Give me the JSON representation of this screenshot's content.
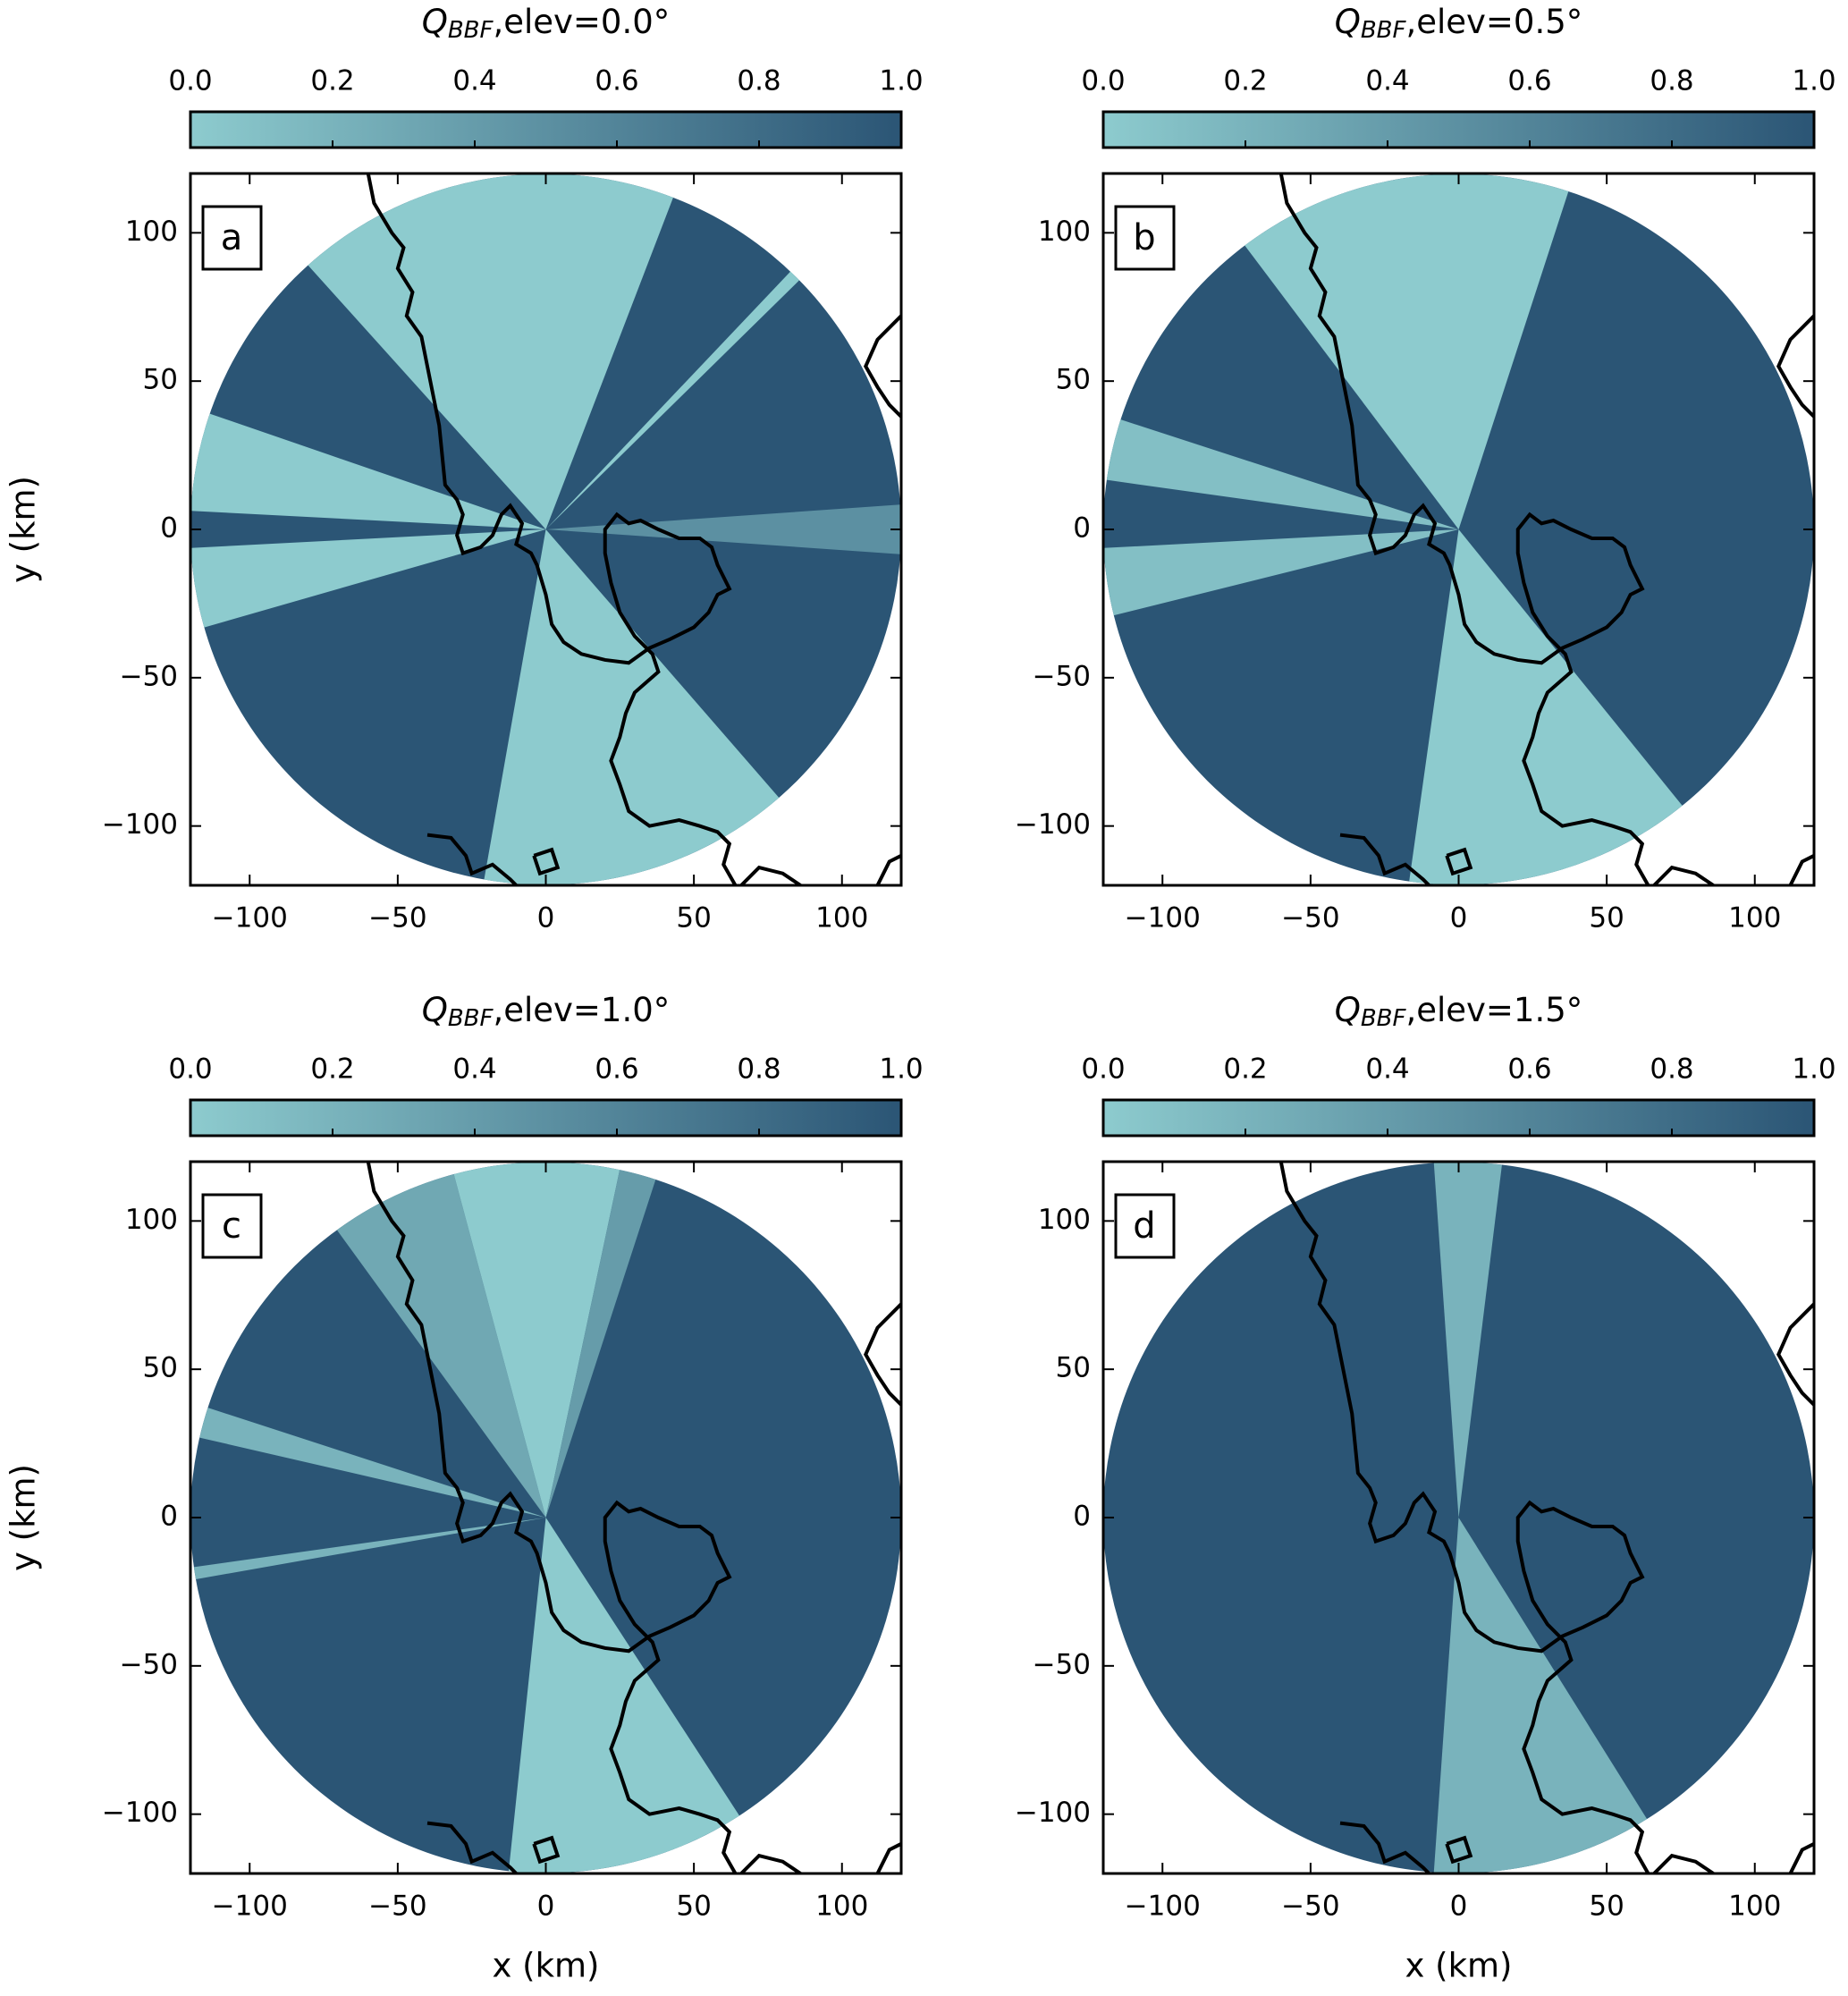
{
  "chart_data": [
    {
      "type": "radar-sector",
      "panel_label": "a",
      "title": "Q",
      "title_subscript": "BBF",
      "title_suffix": ",elev=0.0°",
      "colormap": [
        "#8dcbce",
        "#2b5575"
      ],
      "colorbar": {
        "lim": [
          0,
          1
        ],
        "ticks": [
          {
            "value": 0,
            "label": "0.0"
          },
          0.2,
          0.4,
          0.6,
          0.8,
          {
            "value": 1,
            "label": "1.0"
          }
        ]
      },
      "xlim": [
        -120,
        120
      ],
      "ylim": [
        -120,
        120
      ],
      "xticks": [
        {
          "value": -100,
          "label": "−100"
        },
        {
          "value": -50,
          "label": "−50"
        },
        0,
        50,
        100
      ],
      "yticks": [
        {
          "value": -100,
          "label": "−100"
        },
        {
          "value": -50,
          "label": "−50"
        },
        0,
        50,
        100
      ],
      "ylabel": "y (km)",
      "background_value": 1,
      "sectors": [
        {
          "azimuth": [
            318,
            21
          ],
          "value": 0
        },
        {
          "azimuth": [
            43.5,
            45.5
          ],
          "value": 0
        },
        {
          "azimuth": [
            254,
            267
          ],
          "value": 0
        },
        {
          "azimuth": [
            273,
            289
          ],
          "value": 0
        },
        {
          "azimuth": [
            139,
            190
          ],
          "value": 0
        },
        {
          "azimuth": [
            86,
            94
          ],
          "value": 0.5
        }
      ]
    },
    {
      "type": "radar-sector",
      "panel_label": "b",
      "title": "Q",
      "title_subscript": "BBF",
      "title_suffix": ",elev=0.5°",
      "colormap": [
        "#8dcbce",
        "#2b5575"
      ],
      "colorbar": {
        "lim": [
          0,
          1
        ],
        "ticks": [
          {
            "value": 0,
            "label": "0.0"
          },
          0.2,
          0.4,
          0.6,
          0.8,
          {
            "value": 1,
            "label": "1.0"
          }
        ]
      },
      "xlim": [
        -120,
        120
      ],
      "ylim": [
        -120,
        120
      ],
      "xticks": [
        {
          "value": -100,
          "label": "−100"
        },
        {
          "value": -50,
          "label": "−50"
        },
        0,
        50,
        100
      ],
      "yticks": [
        {
          "value": -100,
          "label": "−100"
        },
        {
          "value": -50,
          "label": "−50"
        },
        0,
        50,
        100
      ],
      "background_value": 1,
      "sectors": [
        {
          "azimuth": [
            323,
            18
          ],
          "value": 0
        },
        {
          "azimuth": [
            278,
            288
          ],
          "value": 0.1
        },
        {
          "azimuth": [
            256,
            267
          ],
          "value": 0.1
        },
        {
          "azimuth": [
            141,
            188
          ],
          "value": 0
        }
      ]
    },
    {
      "type": "radar-sector",
      "panel_label": "c",
      "title": "Q",
      "title_subscript": "BBF",
      "title_suffix": ",elev=1.0°",
      "colormap": [
        "#8dcbce",
        "#2b5575"
      ],
      "colorbar": {
        "lim": [
          0,
          1
        ],
        "ticks": [
          {
            "value": 0,
            "label": "0.0"
          },
          0.2,
          0.4,
          0.6,
          0.8,
          {
            "value": 1,
            "label": "1.0"
          }
        ]
      },
      "xlim": [
        -120,
        120
      ],
      "ylim": [
        -120,
        120
      ],
      "xticks": [
        {
          "value": -100,
          "label": "−100"
        },
        {
          "value": -50,
          "label": "−50"
        },
        0,
        50,
        100
      ],
      "yticks": [
        {
          "value": -100,
          "label": "−100"
        },
        {
          "value": -50,
          "label": "−50"
        },
        0,
        50,
        100
      ],
      "xlabel": "x (km)",
      "ylabel": "y (km)",
      "background_value": 1,
      "sectors": [
        {
          "azimuth": [
            324,
            345
          ],
          "value": 0.3
        },
        {
          "azimuth": [
            345,
            12
          ],
          "value": 0
        },
        {
          "azimuth": [
            12,
            18
          ],
          "value": 0.4
        },
        {
          "azimuth": [
            283,
            288
          ],
          "value": 0.2
        },
        {
          "azimuth": [
            260,
            262
          ],
          "value": 0.2
        },
        {
          "azimuth": [
            147,
            186
          ],
          "value": 0
        }
      ]
    },
    {
      "type": "radar-sector",
      "panel_label": "d",
      "title": "Q",
      "title_subscript": "BBF",
      "title_suffix": ",elev=1.5°",
      "colormap": [
        "#8dcbce",
        "#2b5575"
      ],
      "colorbar": {
        "lim": [
          0,
          1
        ],
        "ticks": [
          {
            "value": 0,
            "label": "0.0"
          },
          0.2,
          0.4,
          0.6,
          0.8,
          {
            "value": 1,
            "label": "1.0"
          }
        ]
      },
      "xlim": [
        -120,
        120
      ],
      "ylim": [
        -120,
        120
      ],
      "xticks": [
        {
          "value": -100,
          "label": "−100"
        },
        {
          "value": -50,
          "label": "−50"
        },
        0,
        50,
        100
      ],
      "yticks": [
        {
          "value": -100,
          "label": "−100"
        },
        {
          "value": -50,
          "label": "−50"
        },
        0,
        50,
        100
      ],
      "xlabel": "x (km)",
      "background_value": 1,
      "sectors": [
        {
          "azimuth": [
            356,
            7
          ],
          "value": 0.2
        },
        {
          "azimuth": [
            148,
            184
          ],
          "value": 0.2
        }
      ]
    }
  ]
}
